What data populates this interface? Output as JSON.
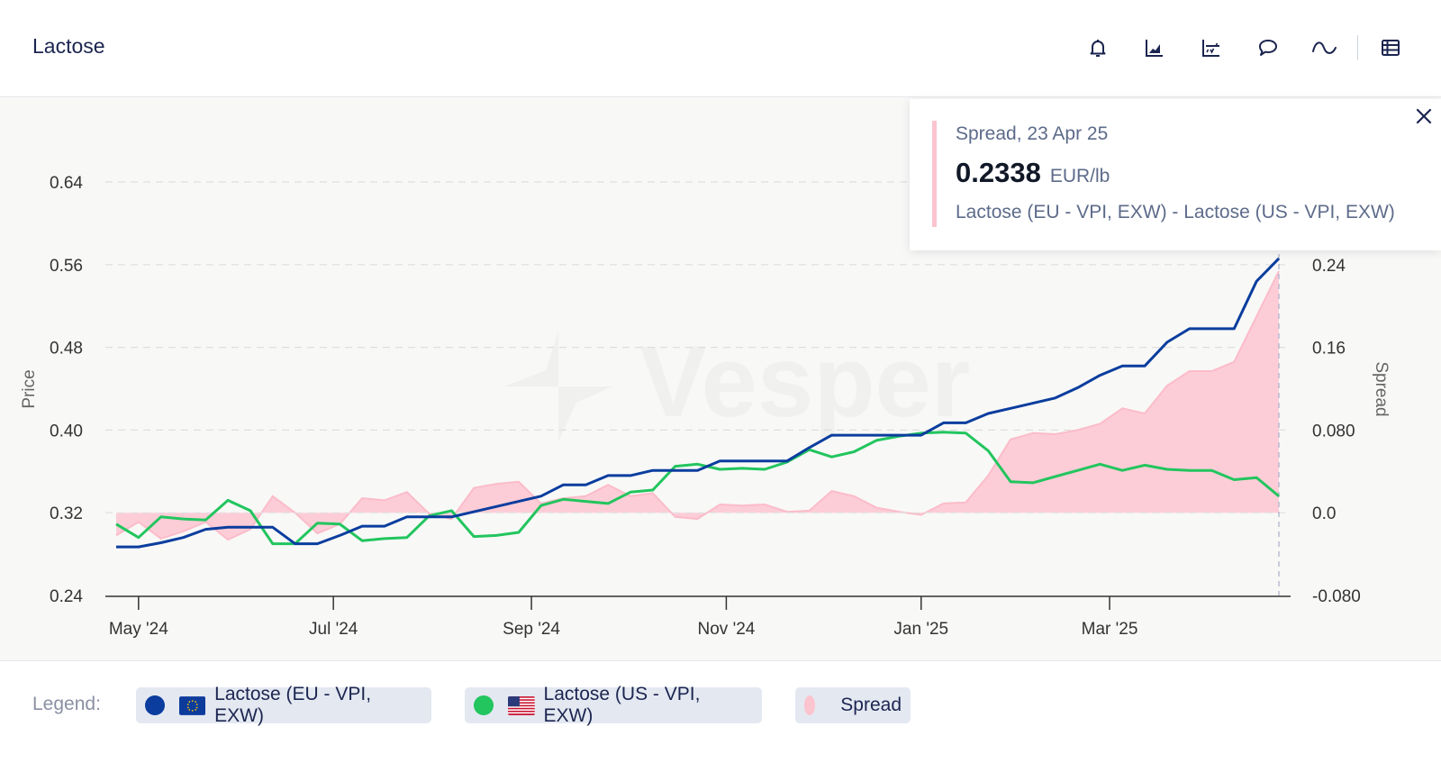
{
  "header": {
    "title": "Lactose",
    "toolbar": [
      {
        "name": "bell-icon",
        "label": "alerts"
      },
      {
        "name": "area-chart-icon",
        "label": "chart type"
      },
      {
        "name": "forecast-chart-icon",
        "label": "forecast"
      },
      {
        "name": "comment-icon",
        "label": "comments"
      },
      {
        "name": "wave-icon",
        "label": "smoothing"
      },
      {
        "name": "table-icon",
        "label": "table view"
      }
    ]
  },
  "watermark": "Vesper",
  "tooltip": {
    "header": "Spread, 23 Apr 25",
    "value": "0.2338",
    "unit": "EUR/lb",
    "description": "Lactose (EU - VPI, EXW) - Lactose (US - VPI, EXW)"
  },
  "legend": {
    "label": "Legend:",
    "items": [
      {
        "label": "Lactose (EU - VPI, EXW)",
        "color": "#0a3d9e",
        "flag": "eu-flag-icon"
      },
      {
        "label": "Lactose (US - VPI, EXW)",
        "color": "#22c55e",
        "flag": "us-flag-icon"
      },
      {
        "label": "Spread",
        "color": "#fbc4cf",
        "flag": null
      }
    ]
  },
  "colors": {
    "eu": "#0a3d9e",
    "us": "#22c55e",
    "spread_fill": "#fdcad5",
    "spread_line": "#fbbcc9",
    "axis_text": "#333333"
  },
  "chart_data": {
    "type": "line",
    "title": "Lactose",
    "xlabel": "",
    "ylabel": "Price",
    "y2label": "Spread",
    "ylim": [
      0.24,
      0.64
    ],
    "y2lim": [
      -0.08,
      0.24
    ],
    "yticks": [
      "0.24",
      "0.32",
      "0.40",
      "0.48",
      "0.56",
      "0.64"
    ],
    "y2ticks": [
      "-0.080",
      "0.0",
      "0.080",
      "0.16",
      "0.24"
    ],
    "xticks": [
      "May '24",
      "Jul '24",
      "Sep '24",
      "Nov '24",
      "Jan '25",
      "Mar '25"
    ],
    "x_start": "2024-04-24",
    "x_end": "2025-04-23",
    "x_step_weeks": 1,
    "grid": true,
    "legend_position": "bottom",
    "series": [
      {
        "name": "Lactose (EU - VPI, EXW)",
        "axis": "left",
        "type": "line",
        "values": [
          0.287,
          0.287,
          0.291,
          0.296,
          0.304,
          0.306,
          0.306,
          0.306,
          0.29,
          0.29,
          0.298,
          0.307,
          0.307,
          0.316,
          0.316,
          0.316,
          0.321,
          0.326,
          0.331,
          0.336,
          0.347,
          0.347,
          0.356,
          0.356,
          0.361,
          0.361,
          0.361,
          0.37,
          0.37,
          0.37,
          0.37,
          0.383,
          0.395,
          0.395,
          0.395,
          0.395,
          0.395,
          0.407,
          0.407,
          0.416,
          0.421,
          0.426,
          0.431,
          0.441,
          0.453,
          0.462,
          0.462,
          0.485,
          0.498,
          0.498,
          0.498,
          0.544,
          0.566
        ]
      },
      {
        "name": "Lactose (US - VPI, EXW)",
        "axis": "left",
        "type": "line",
        "values": [
          0.309,
          0.296,
          0.316,
          0.314,
          0.313,
          0.332,
          0.322,
          0.29,
          0.29,
          0.31,
          0.309,
          0.293,
          0.295,
          0.296,
          0.317,
          0.322,
          0.297,
          0.298,
          0.301,
          0.327,
          0.333,
          0.331,
          0.329,
          0.34,
          0.342,
          0.365,
          0.367,
          0.362,
          0.363,
          0.362,
          0.369,
          0.381,
          0.374,
          0.379,
          0.39,
          0.394,
          0.397,
          0.398,
          0.397,
          0.38,
          0.35,
          0.349,
          0.355,
          0.361,
          0.367,
          0.361,
          0.366,
          0.362,
          0.361,
          0.361,
          0.352,
          0.354,
          0.336
        ]
      },
      {
        "name": "Spread",
        "axis": "right",
        "type": "area",
        "values": [
          -0.022,
          -0.009,
          -0.025,
          -0.018,
          -0.009,
          -0.026,
          -0.016,
          0.016,
          0.0,
          -0.02,
          -0.011,
          0.014,
          0.012,
          0.02,
          -0.001,
          -0.006,
          0.024,
          0.028,
          0.03,
          0.009,
          0.014,
          0.016,
          0.027,
          0.016,
          0.019,
          -0.004,
          -0.006,
          0.008,
          0.007,
          0.008,
          0.001,
          0.002,
          0.021,
          0.016,
          0.005,
          0.001,
          -0.002,
          0.009,
          0.01,
          0.036,
          0.071,
          0.077,
          0.076,
          0.08,
          0.086,
          0.101,
          0.096,
          0.123,
          0.137,
          0.137,
          0.146,
          0.19,
          0.2338
        ]
      }
    ]
  }
}
